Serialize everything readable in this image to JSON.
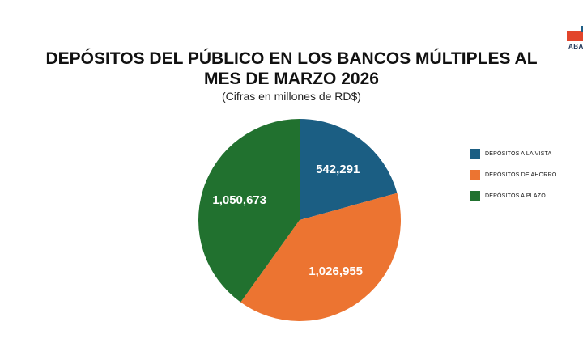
{
  "logo": {
    "text": "ABA",
    "colors": [
      "#e2452b",
      "#1f5e86"
    ]
  },
  "chart_data": {
    "type": "pie",
    "title_line1": "DEPÓSITOS DEL PÚBLICO EN LOS BANCOS MÚLTIPLES AL",
    "title_line2": "MES DE MARZO 2026",
    "subtitle": "(Cifras en millones de RD$)",
    "slices": [
      {
        "name": "DEPÓSITOS A LA VISTA",
        "value": 542291,
        "label": "542,291",
        "color": "#1b5e83"
      },
      {
        "name": "DEPÓSITOS DE AHORRO",
        "value": 1026955,
        "label": "1,026,955",
        "color": "#ec7431"
      },
      {
        "name": "DEPÓSITOS A PLAZO",
        "value": 1050673,
        "label": "1,050,673",
        "color": "#21712f"
      }
    ],
    "start_angle_deg": 0,
    "direction": "clockwise",
    "legend_position": "right"
  }
}
